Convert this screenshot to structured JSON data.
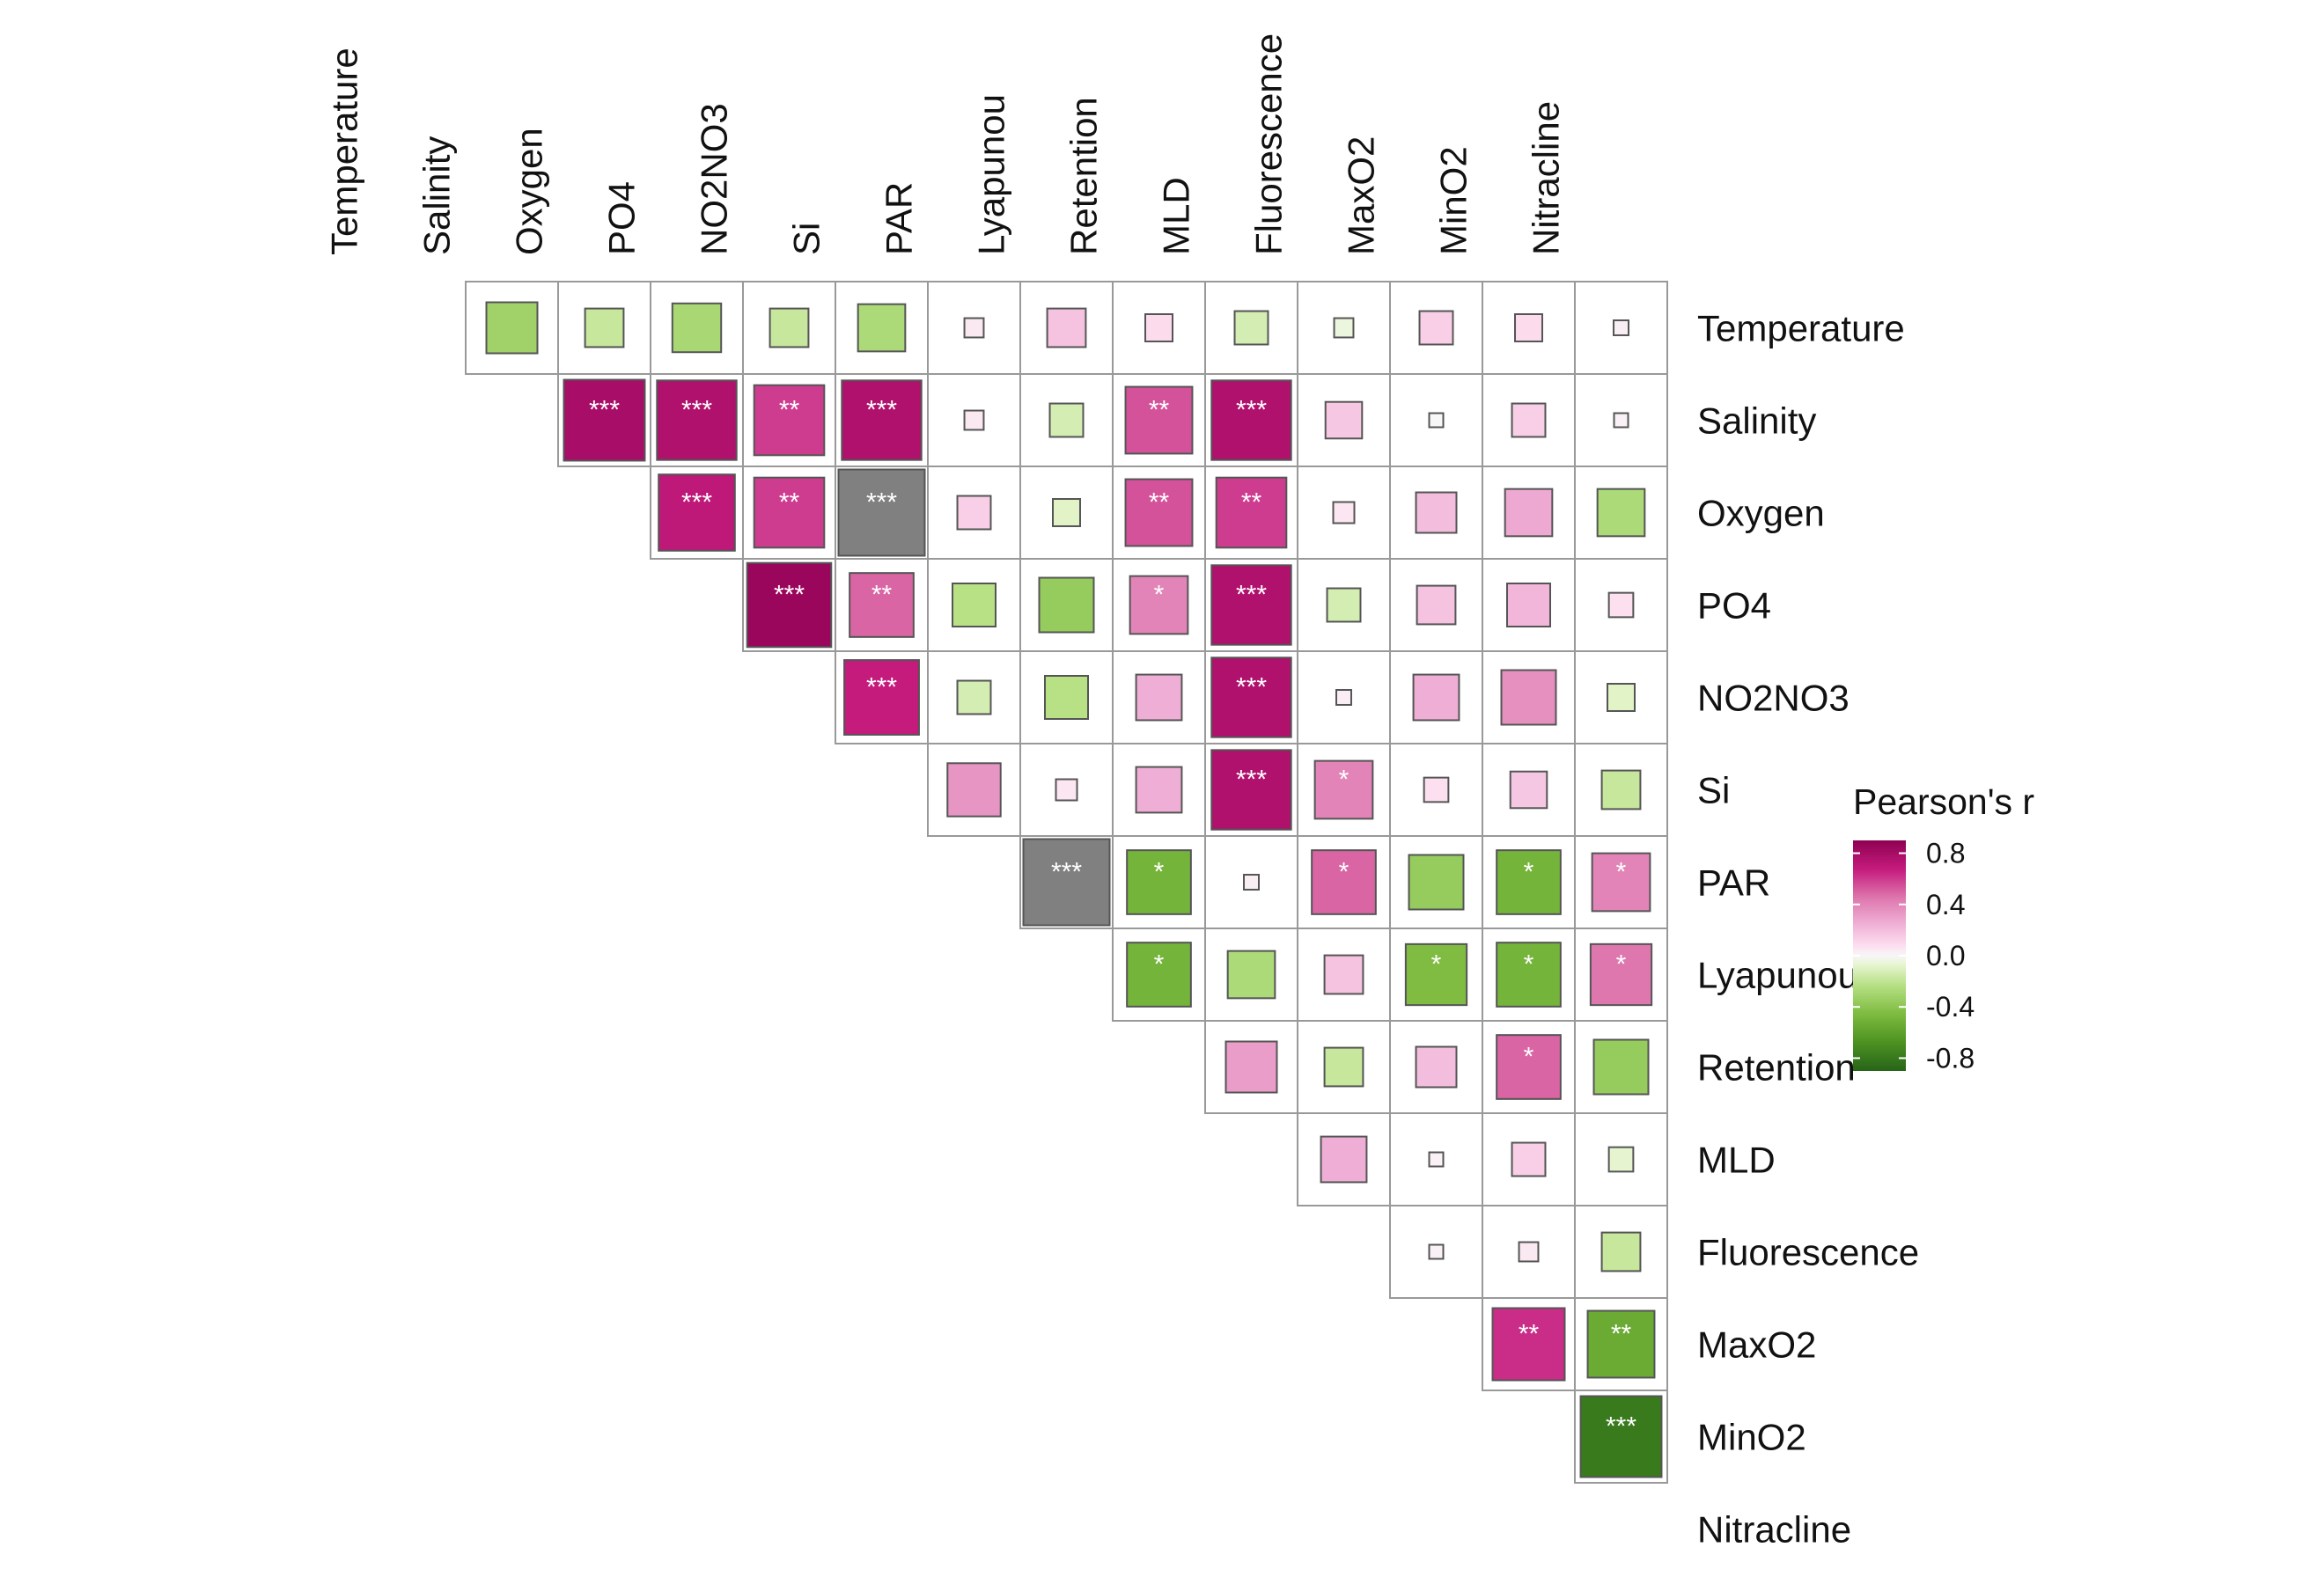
{
  "chart_data": {
    "type": "heatmap",
    "variables": [
      "Temperature",
      "Salinity",
      "Oxygen",
      "PO4",
      "NO2NO3",
      "Si",
      "PAR",
      "Lyapunou",
      "Retention",
      "MLD",
      "Fluorescence",
      "MaxO2",
      "MinO2",
      "Nitracline"
    ],
    "legend": {
      "title": "Pearson's r",
      "ticks": [
        "0.8",
        "0.4",
        "0.0",
        "-0.4",
        "-0.8"
      ],
      "range": [
        -0.9,
        0.9
      ],
      "position": "right"
    },
    "color_scale": {
      "neg_strong": "#276419",
      "neg_mid": "#7fbc41",
      "neg_light": "#b8e186",
      "neg_pale": "#e6f5d0",
      "zero": "#f7f7f7",
      "pos_pale": "#fde0ef",
      "pos_light": "#f1b6da",
      "pos_mid": "#de77ae",
      "pos_strong": "#8e0152",
      "na": "#808080",
      "cell_border": "#999999"
    },
    "cells": [
      {
        "row": "Temperature",
        "col": "Salinity",
        "r": -0.35,
        "sig": ""
      },
      {
        "row": "Temperature",
        "col": "Oxygen",
        "r": -0.2,
        "sig": ""
      },
      {
        "row": "Temperature",
        "col": "PO4",
        "r": -0.32,
        "sig": ""
      },
      {
        "row": "Temperature",
        "col": "NO2NO3",
        "r": -0.2,
        "sig": ""
      },
      {
        "row": "Temperature",
        "col": "Si",
        "r": -0.3,
        "sig": ""
      },
      {
        "row": "Temperature",
        "col": "PAR",
        "r": 0.05,
        "sig": ""
      },
      {
        "row": "Temperature",
        "col": "Lyapunou",
        "r": 0.2,
        "sig": ""
      },
      {
        "row": "Temperature",
        "col": "Retention",
        "r": 0.1,
        "sig": ""
      },
      {
        "row": "Temperature",
        "col": "MLD",
        "r": -0.15,
        "sig": ""
      },
      {
        "row": "Temperature",
        "col": "Fluorescence",
        "r": -0.05,
        "sig": ""
      },
      {
        "row": "Temperature",
        "col": "MaxO2",
        "r": 0.15,
        "sig": ""
      },
      {
        "row": "Temperature",
        "col": "MinO2",
        "r": 0.1,
        "sig": ""
      },
      {
        "row": "Temperature",
        "col": "Nitracline",
        "r": 0.03,
        "sig": ""
      },
      {
        "row": "Salinity",
        "col": "Oxygen",
        "r": 0.88,
        "sig": "***"
      },
      {
        "row": "Salinity",
        "col": "PO4",
        "r": 0.85,
        "sig": "***"
      },
      {
        "row": "Salinity",
        "col": "NO2NO3",
        "r": 0.66,
        "sig": "**"
      },
      {
        "row": "Salinity",
        "col": "Si",
        "r": 0.85,
        "sig": "***"
      },
      {
        "row": "Salinity",
        "col": "PAR",
        "r": 0.05,
        "sig": ""
      },
      {
        "row": "Salinity",
        "col": "Lyapunou",
        "r": -0.15,
        "sig": ""
      },
      {
        "row": "Salinity",
        "col": "Retention",
        "r": 0.6,
        "sig": "**"
      },
      {
        "row": "Salinity",
        "col": "MLD",
        "r": 0.85,
        "sig": "***"
      },
      {
        "row": "Salinity",
        "col": "Fluorescence",
        "r": 0.18,
        "sig": ""
      },
      {
        "row": "Salinity",
        "col": "MaxO2",
        "r": 0.0,
        "sig": ""
      },
      {
        "row": "Salinity",
        "col": "MinO2",
        "r": 0.15,
        "sig": ""
      },
      {
        "row": "Salinity",
        "col": "Nitracline",
        "r": 0.02,
        "sig": ""
      },
      {
        "row": "Oxygen",
        "col": "PO4",
        "r": 0.78,
        "sig": "***"
      },
      {
        "row": "Oxygen",
        "col": "NO2NO3",
        "r": 0.66,
        "sig": "**"
      },
      {
        "row": "Oxygen",
        "col": "Si",
        "r": null,
        "sig": "***"
      },
      {
        "row": "Oxygen",
        "col": "PAR",
        "r": 0.15,
        "sig": ""
      },
      {
        "row": "Oxygen",
        "col": "Lyapunou",
        "r": -0.1,
        "sig": ""
      },
      {
        "row": "Oxygen",
        "col": "Retention",
        "r": 0.6,
        "sig": "**"
      },
      {
        "row": "Oxygen",
        "col": "MLD",
        "r": 0.66,
        "sig": "**"
      },
      {
        "row": "Oxygen",
        "col": "Fluorescence",
        "r": 0.06,
        "sig": ""
      },
      {
        "row": "Oxygen",
        "col": "MaxO2",
        "r": 0.22,
        "sig": ""
      },
      {
        "row": "Oxygen",
        "col": "MinO2",
        "r": 0.3,
        "sig": ""
      },
      {
        "row": "Oxygen",
        "col": "Nitracline",
        "r": -0.3,
        "sig": ""
      },
      {
        "row": "PO4",
        "col": "NO2NO3",
        "r": 0.95,
        "sig": "***"
      },
      {
        "row": "PO4",
        "col": "Si",
        "r": 0.55,
        "sig": "**"
      },
      {
        "row": "PO4",
        "col": "PAR",
        "r": -0.25,
        "sig": ""
      },
      {
        "row": "PO4",
        "col": "Lyapunou",
        "r": -0.4,
        "sig": ""
      },
      {
        "row": "PO4",
        "col": "Retention",
        "r": 0.45,
        "sig": "*"
      },
      {
        "row": "PO4",
        "col": "MLD",
        "r": 0.85,
        "sig": "***"
      },
      {
        "row": "PO4",
        "col": "Fluorescence",
        "r": -0.15,
        "sig": ""
      },
      {
        "row": "PO4",
        "col": "MaxO2",
        "r": 0.2,
        "sig": ""
      },
      {
        "row": "PO4",
        "col": "MinO2",
        "r": 0.25,
        "sig": ""
      },
      {
        "row": "PO4",
        "col": "Nitracline",
        "r": 0.08,
        "sig": ""
      },
      {
        "row": "NO2NO3",
        "col": "Si",
        "r": 0.75,
        "sig": "***"
      },
      {
        "row": "NO2NO3",
        "col": "PAR",
        "r": -0.15,
        "sig": ""
      },
      {
        "row": "NO2NO3",
        "col": "Lyapunou",
        "r": -0.25,
        "sig": ""
      },
      {
        "row": "NO2NO3",
        "col": "Retention",
        "r": 0.28,
        "sig": ""
      },
      {
        "row": "NO2NO3",
        "col": "MLD",
        "r": 0.85,
        "sig": "***"
      },
      {
        "row": "NO2NO3",
        "col": "Fluorescence",
        "r": 0.03,
        "sig": ""
      },
      {
        "row": "NO2NO3",
        "col": "MaxO2",
        "r": 0.28,
        "sig": ""
      },
      {
        "row": "NO2NO3",
        "col": "MinO2",
        "r": 0.4,
        "sig": ""
      },
      {
        "row": "NO2NO3",
        "col": "Nitracline",
        "r": -0.1,
        "sig": ""
      },
      {
        "row": "Si",
        "col": "PAR",
        "r": 0.38,
        "sig": ""
      },
      {
        "row": "Si",
        "col": "Lyapunou",
        "r": 0.06,
        "sig": ""
      },
      {
        "row": "Si",
        "col": "Retention",
        "r": 0.28,
        "sig": ""
      },
      {
        "row": "Si",
        "col": "MLD",
        "r": 0.85,
        "sig": "***"
      },
      {
        "row": "Si",
        "col": "Fluorescence",
        "r": 0.45,
        "sig": "*"
      },
      {
        "row": "Si",
        "col": "MaxO2",
        "r": 0.08,
        "sig": ""
      },
      {
        "row": "Si",
        "col": "MinO2",
        "r": 0.18,
        "sig": ""
      },
      {
        "row": "Si",
        "col": "Nitracline",
        "r": -0.2,
        "sig": ""
      },
      {
        "row": "PAR",
        "col": "Lyapunou",
        "r": null,
        "sig": "***"
      },
      {
        "row": "PAR",
        "col": "Retention",
        "r": -0.55,
        "sig": "*"
      },
      {
        "row": "PAR",
        "col": "MLD",
        "r": 0.03,
        "sig": ""
      },
      {
        "row": "PAR",
        "col": "Fluorescence",
        "r": 0.55,
        "sig": "*"
      },
      {
        "row": "PAR",
        "col": "MaxO2",
        "r": -0.4,
        "sig": ""
      },
      {
        "row": "PAR",
        "col": "MinO2",
        "r": -0.55,
        "sig": "*"
      },
      {
        "row": "PAR",
        "col": "Nitracline",
        "r": 0.45,
        "sig": "*"
      },
      {
        "row": "Lyapunou",
        "col": "Retention",
        "r": -0.55,
        "sig": "*"
      },
      {
        "row": "Lyapunou",
        "col": "MLD",
        "r": -0.3,
        "sig": ""
      },
      {
        "row": "Lyapunou",
        "col": "Fluorescence",
        "r": 0.2,
        "sig": ""
      },
      {
        "row": "Lyapunou",
        "col": "MaxO2",
        "r": -0.5,
        "sig": "*"
      },
      {
        "row": "Lyapunou",
        "col": "MinO2",
        "r": -0.55,
        "sig": "*"
      },
      {
        "row": "Lyapunou",
        "col": "Nitracline",
        "r": 0.5,
        "sig": "*"
      },
      {
        "row": "Retention",
        "col": "MLD",
        "r": 0.35,
        "sig": ""
      },
      {
        "row": "Retention",
        "col": "Fluorescence",
        "r": -0.2,
        "sig": ""
      },
      {
        "row": "Retention",
        "col": "MaxO2",
        "r": 0.22,
        "sig": ""
      },
      {
        "row": "Retention",
        "col": "MinO2",
        "r": 0.55,
        "sig": "*"
      },
      {
        "row": "Retention",
        "col": "Nitracline",
        "r": -0.4,
        "sig": ""
      },
      {
        "row": "MLD",
        "col": "Fluorescence",
        "r": 0.28,
        "sig": ""
      },
      {
        "row": "MLD",
        "col": "MaxO2",
        "r": 0.02,
        "sig": ""
      },
      {
        "row": "MLD",
        "col": "MinO2",
        "r": 0.15,
        "sig": ""
      },
      {
        "row": "MLD",
        "col": "Nitracline",
        "r": -0.08,
        "sig": ""
      },
      {
        "row": "Fluorescence",
        "col": "MaxO2",
        "r": 0.02,
        "sig": ""
      },
      {
        "row": "Fluorescence",
        "col": "MinO2",
        "r": 0.05,
        "sig": ""
      },
      {
        "row": "Fluorescence",
        "col": "Nitracline",
        "r": -0.2,
        "sig": ""
      },
      {
        "row": "MaxO2",
        "col": "MinO2",
        "r": 0.7,
        "sig": "**"
      },
      {
        "row": "MaxO2",
        "col": "Nitracline",
        "r": -0.6,
        "sig": "**"
      },
      {
        "row": "MinO2",
        "col": "Nitracline",
        "r": -0.88,
        "sig": "***"
      }
    ]
  }
}
